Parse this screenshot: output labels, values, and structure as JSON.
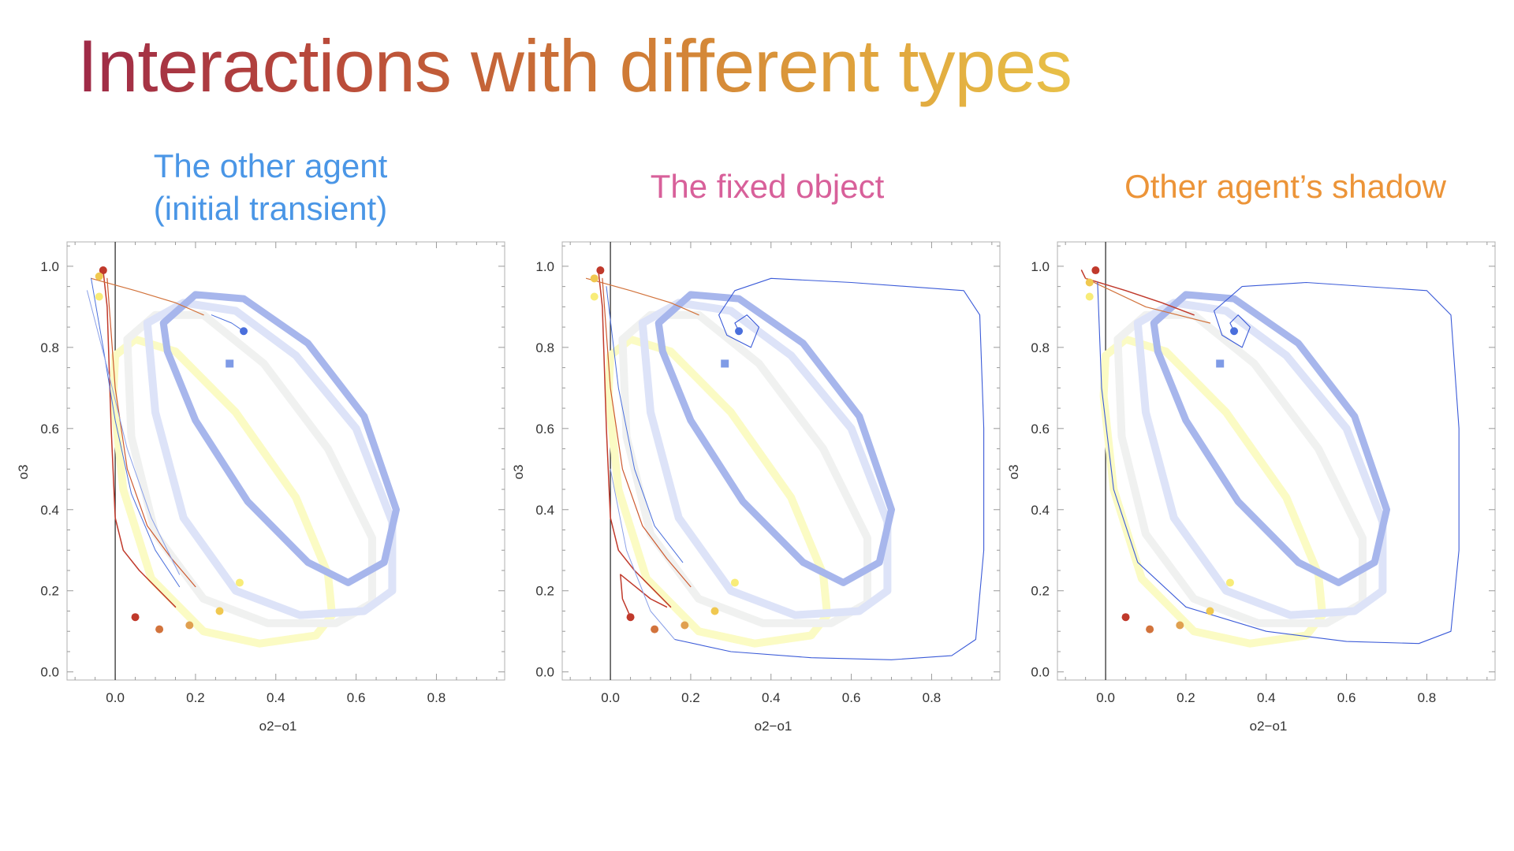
{
  "slide_title": "Interactions with different types",
  "colors": {
    "title_gradient": [
      "#9e2a48",
      "#cf7a36",
      "#e8c048"
    ],
    "panel_titles": [
      "#4a96e6",
      "#d8609a",
      "#ec9438"
    ]
  },
  "chart_data": [
    {
      "type": "scatter",
      "title_lines": [
        "The other agent",
        "(initial transient)"
      ],
      "xlabel": "o2−o1",
      "ylabel": "o3",
      "xlim": [
        -0.12,
        0.97
      ],
      "ylim": [
        -0.02,
        1.06
      ],
      "xticks": [
        "0.0",
        "0.2",
        "0.4",
        "0.6",
        "0.8"
      ],
      "yticks": [
        "0.0",
        "0.2",
        "0.4",
        "0.6",
        "0.8",
        "1.0"
      ],
      "grid": false,
      "points": [
        {
          "x": -0.03,
          "y": 0.99,
          "color": "#c0392b"
        },
        {
          "x": 0.32,
          "y": 0.84,
          "color": "#4a6fdc"
        },
        {
          "x": 0.05,
          "y": 0.135,
          "color": "#c0392b"
        },
        {
          "x": 0.11,
          "y": 0.105,
          "color": "#d2733c"
        },
        {
          "x": 0.185,
          "y": 0.115,
          "color": "#e0a050"
        },
        {
          "x": 0.26,
          "y": 0.15,
          "color": "#f0c850"
        },
        {
          "x": 0.31,
          "y": 0.22,
          "color": "#f8ec78"
        },
        {
          "x": -0.04,
          "y": 0.975,
          "color": "#f0c850"
        },
        {
          "x": -0.04,
          "y": 0.925,
          "color": "#f8ec78"
        }
      ],
      "square_marker": {
        "x": 0.285,
        "y": 0.76,
        "color": "#7f9be6"
      }
    },
    {
      "type": "scatter",
      "title_lines": [
        "The fixed object"
      ],
      "xlabel": "o2−o1",
      "ylabel": "o3",
      "xlim": [
        -0.12,
        0.97
      ],
      "ylim": [
        -0.02,
        1.06
      ],
      "xticks": [
        "0.0",
        "0.2",
        "0.4",
        "0.6",
        "0.8"
      ],
      "yticks": [
        "0.0",
        "0.2",
        "0.4",
        "0.6",
        "0.8",
        "1.0"
      ],
      "grid": false,
      "points": [
        {
          "x": -0.025,
          "y": 0.99,
          "color": "#c0392b"
        },
        {
          "x": 0.32,
          "y": 0.84,
          "color": "#4a6fdc"
        },
        {
          "x": 0.05,
          "y": 0.135,
          "color": "#c0392b"
        },
        {
          "x": 0.11,
          "y": 0.105,
          "color": "#d2733c"
        },
        {
          "x": 0.185,
          "y": 0.115,
          "color": "#e0a050"
        },
        {
          "x": 0.26,
          "y": 0.15,
          "color": "#f0c850"
        },
        {
          "x": 0.31,
          "y": 0.22,
          "color": "#f8ec78"
        },
        {
          "x": -0.04,
          "y": 0.97,
          "color": "#f0c850"
        },
        {
          "x": -0.04,
          "y": 0.925,
          "color": "#f8ec78"
        }
      ],
      "square_marker": {
        "x": 0.285,
        "y": 0.76,
        "color": "#7f9be6"
      }
    },
    {
      "type": "scatter",
      "title_lines": [
        "Other agent’s shadow"
      ],
      "xlabel": "o2−o1",
      "ylabel": "o3",
      "xlim": [
        -0.12,
        0.97
      ],
      "ylim": [
        -0.02,
        1.06
      ],
      "xticks": [
        "0.0",
        "0.2",
        "0.4",
        "0.6",
        "0.8"
      ],
      "yticks": [
        "0.0",
        "0.2",
        "0.4",
        "0.6",
        "0.8",
        "1.0"
      ],
      "grid": false,
      "points": [
        {
          "x": -0.025,
          "y": 0.99,
          "color": "#c0392b"
        },
        {
          "x": 0.32,
          "y": 0.84,
          "color": "#4a6fdc"
        },
        {
          "x": 0.05,
          "y": 0.135,
          "color": "#c0392b"
        },
        {
          "x": 0.11,
          "y": 0.105,
          "color": "#d2733c"
        },
        {
          "x": 0.185,
          "y": 0.115,
          "color": "#e0a050"
        },
        {
          "x": 0.26,
          "y": 0.15,
          "color": "#f0c850"
        },
        {
          "x": 0.31,
          "y": 0.22,
          "color": "#f8ec78"
        },
        {
          "x": -0.04,
          "y": 0.96,
          "color": "#f0c850"
        },
        {
          "x": -0.04,
          "y": 0.925,
          "color": "#f8ec78"
        }
      ],
      "square_marker": {
        "x": 0.285,
        "y": 0.76,
        "color": "#7f9be6"
      }
    }
  ]
}
